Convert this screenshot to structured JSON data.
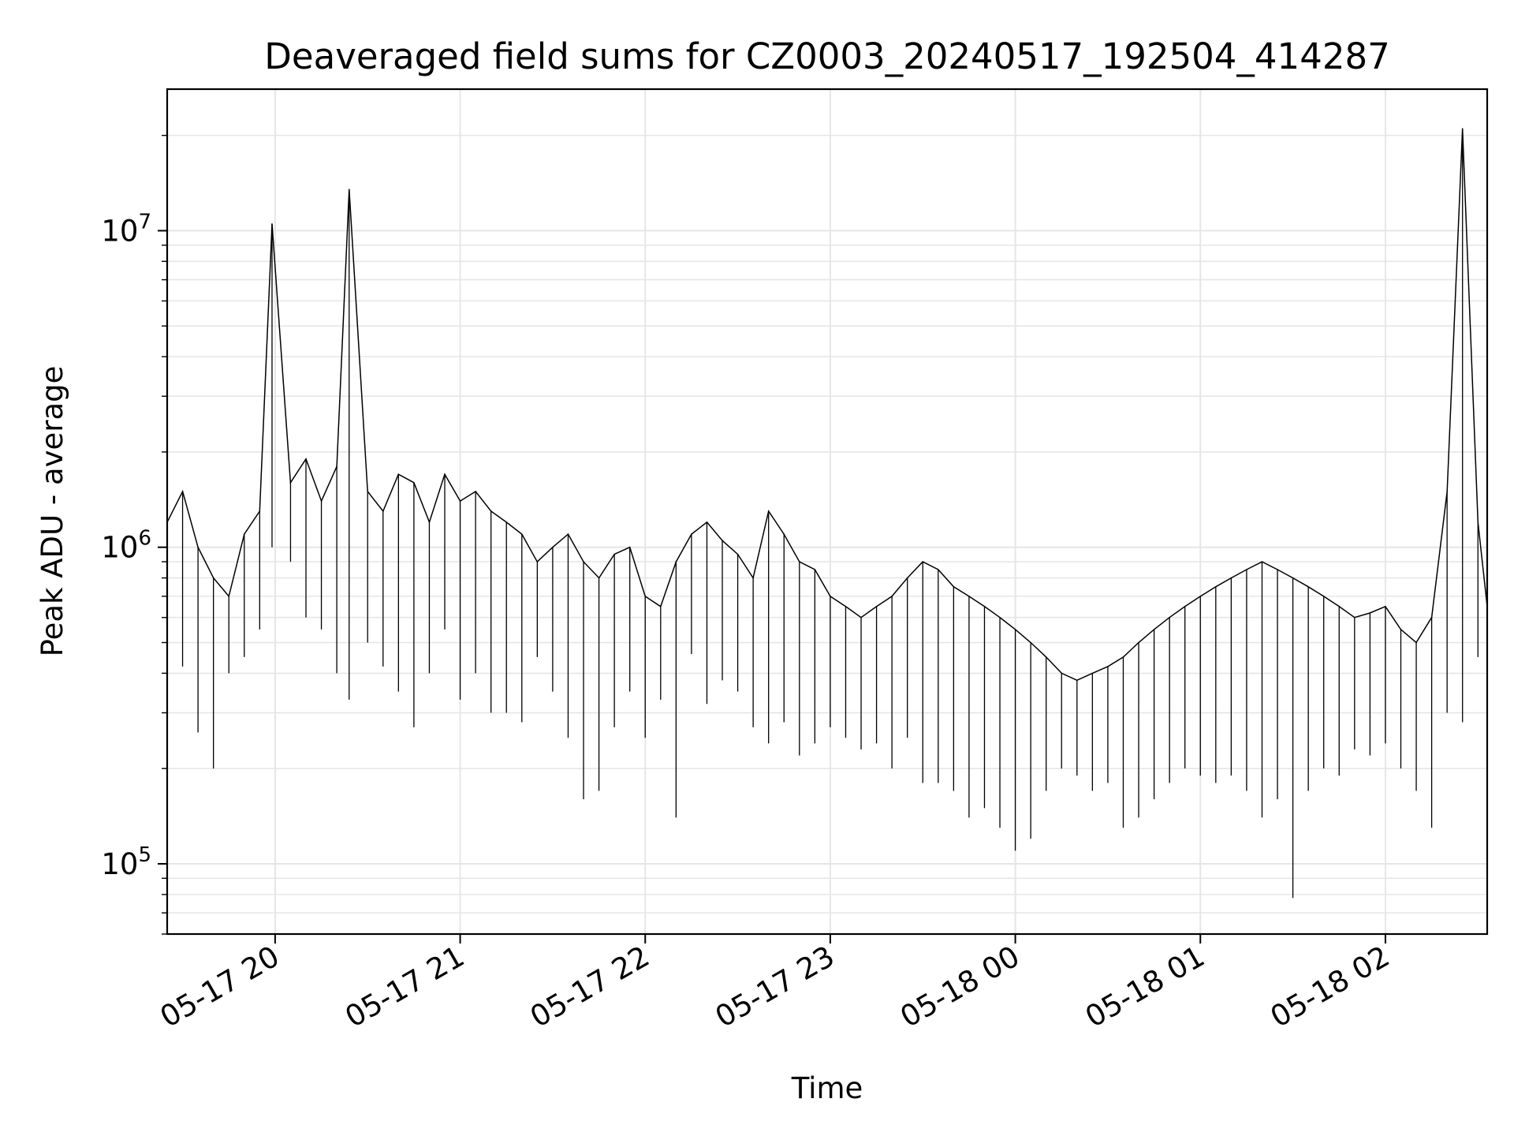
{
  "chart_data": {
    "type": "line",
    "title": "Deaveraged field sums for CZ0003_20240517_192504_414287",
    "xlabel": "Time",
    "ylabel": "Peak ADU - average",
    "xscale": "time",
    "yscale": "log",
    "xlim": [
      "2024-05-17 19:25",
      "2024-05-18 02:33"
    ],
    "ylim": [
      60000,
      28000000
    ],
    "grid": true,
    "legend": "none",
    "line_color": "#000000",
    "grid_color": "#e6e6e6",
    "x_tick_labels": [
      "05-17 20",
      "05-17 21",
      "05-17 22",
      "05-17 23",
      "05-18 00",
      "05-18 01",
      "05-18 02"
    ],
    "y_tick_labels": [
      {
        "base": "10",
        "exp": "5"
      },
      {
        "base": "10",
        "exp": "6"
      },
      {
        "base": "10",
        "exp": "7"
      }
    ],
    "series": [
      {
        "x": [
          "2024-05-17 19:25",
          "2024-05-17 19:30",
          "2024-05-17 19:35",
          "2024-05-17 19:40",
          "2024-05-17 19:45",
          "2024-05-17 19:50",
          "2024-05-17 19:55",
          "2024-05-17 19:59",
          "2024-05-17 20:05",
          "2024-05-17 20:10",
          "2024-05-17 20:15",
          "2024-05-17 20:20",
          "2024-05-17 20:24",
          "2024-05-17 20:30",
          "2024-05-17 20:35",
          "2024-05-17 20:40",
          "2024-05-17 20:45",
          "2024-05-17 20:50",
          "2024-05-17 20:55",
          "2024-05-17 21:00",
          "2024-05-17 21:05",
          "2024-05-17 21:10",
          "2024-05-17 21:15",
          "2024-05-17 21:20",
          "2024-05-17 21:25",
          "2024-05-17 21:30",
          "2024-05-17 21:35",
          "2024-05-17 21:40",
          "2024-05-17 21:45",
          "2024-05-17 21:50",
          "2024-05-17 21:55",
          "2024-05-17 22:00",
          "2024-05-17 22:05",
          "2024-05-17 22:10",
          "2024-05-17 22:15",
          "2024-05-17 22:20",
          "2024-05-17 22:25",
          "2024-05-17 22:30",
          "2024-05-17 22:35",
          "2024-05-17 22:40",
          "2024-05-17 22:45",
          "2024-05-17 22:50",
          "2024-05-17 22:55",
          "2024-05-17 23:00",
          "2024-05-17 23:05",
          "2024-05-17 23:10",
          "2024-05-17 23:15",
          "2024-05-17 23:20",
          "2024-05-17 23:25",
          "2024-05-17 23:30",
          "2024-05-17 23:35",
          "2024-05-17 23:40",
          "2024-05-17 23:45",
          "2024-05-17 23:50",
          "2024-05-17 23:55",
          "2024-05-18 00:00",
          "2024-05-18 00:05",
          "2024-05-18 00:10",
          "2024-05-18 00:15",
          "2024-05-18 00:20",
          "2024-05-18 00:25",
          "2024-05-18 00:30",
          "2024-05-18 00:35",
          "2024-05-18 00:40",
          "2024-05-18 00:45",
          "2024-05-18 00:50",
          "2024-05-18 00:55",
          "2024-05-18 01:00",
          "2024-05-18 01:05",
          "2024-05-18 01:10",
          "2024-05-18 01:15",
          "2024-05-18 01:20",
          "2024-05-18 01:25",
          "2024-05-18 01:30",
          "2024-05-18 01:35",
          "2024-05-18 01:40",
          "2024-05-18 01:45",
          "2024-05-18 01:50",
          "2024-05-18 01:55",
          "2024-05-18 02:00",
          "2024-05-18 02:05",
          "2024-05-18 02:10",
          "2024-05-18 02:15",
          "2024-05-18 02:20",
          "2024-05-18 02:25",
          "2024-05-18 02:30",
          "2024-05-18 02:33"
        ],
        "values": [
          1200000,
          1500000,
          1000000,
          800000,
          700000,
          1100000,
          1300000,
          10500000,
          1600000,
          1900000,
          1400000,
          1800000,
          13500000,
          1500000,
          1300000,
          1700000,
          1600000,
          1200000,
          1700000,
          1400000,
          1500000,
          1300000,
          1200000,
          1100000,
          900000,
          1000000,
          1100000,
          900000,
          800000,
          950000,
          1000000,
          700000,
          650000,
          900000,
          1100000,
          1200000,
          1050000,
          950000,
          800000,
          1300000,
          1100000,
          900000,
          850000,
          700000,
          650000,
          600000,
          650000,
          700000,
          800000,
          900000,
          850000,
          750000,
          700000,
          650000,
          600000,
          550000,
          500000,
          450000,
          400000,
          380000,
          400000,
          420000,
          450000,
          500000,
          550000,
          600000,
          650000,
          700000,
          750000,
          800000,
          850000,
          900000,
          850000,
          800000,
          750000,
          700000,
          650000,
          600000,
          620000,
          650000,
          550000,
          500000,
          600000,
          1500000,
          21000000,
          1200000,
          650000
        ],
        "min_values": [
          220000,
          420000,
          260000,
          200000,
          400000,
          450000,
          550000,
          1000000,
          900000,
          600000,
          550000,
          400000,
          330000,
          500000,
          420000,
          350000,
          270000,
          400000,
          550000,
          330000,
          400000,
          300000,
          300000,
          280000,
          450000,
          350000,
          250000,
          160000,
          170000,
          270000,
          350000,
          250000,
          330000,
          140000,
          460000,
          320000,
          380000,
          350000,
          270000,
          240000,
          280000,
          220000,
          240000,
          270000,
          250000,
          230000,
          240000,
          200000,
          250000,
          180000,
          180000,
          170000,
          140000,
          150000,
          130000,
          110000,
          120000,
          170000,
          200000,
          190000,
          170000,
          180000,
          130000,
          140000,
          160000,
          180000,
          200000,
          190000,
          180000,
          190000,
          170000,
          140000,
          160000,
          78000,
          170000,
          200000,
          190000,
          230000,
          220000,
          240000,
          200000,
          170000,
          130000,
          300000,
          280000,
          450000,
          500000
        ]
      }
    ]
  }
}
